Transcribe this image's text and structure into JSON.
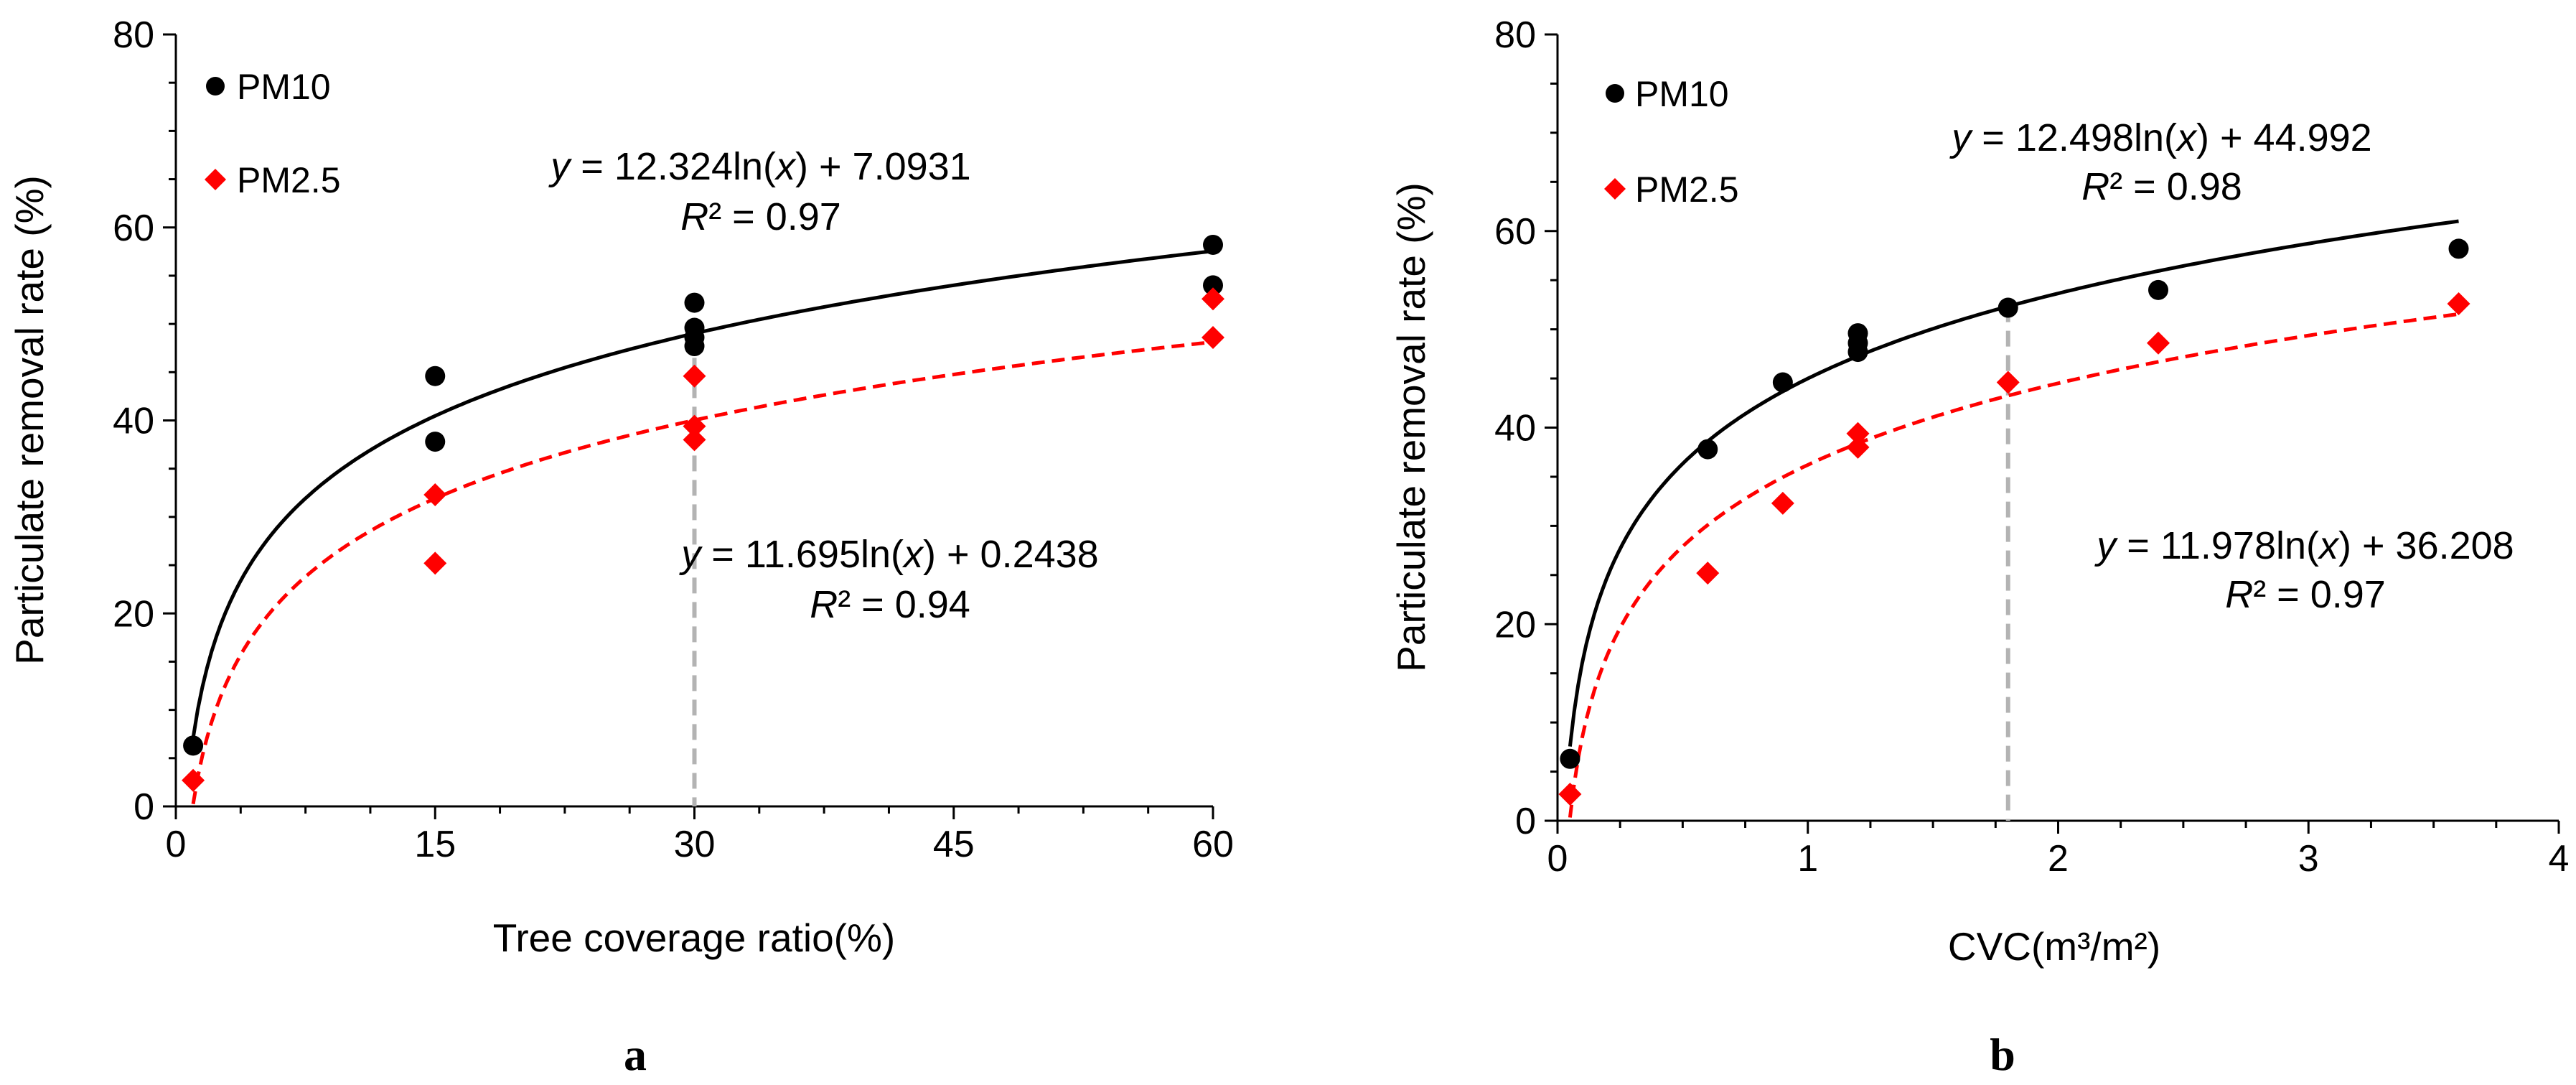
{
  "chart_data": [
    {
      "type": "scatter",
      "panel": "a",
      "xlabel": "Tree coverage ratio(%)",
      "ylabel": "Particulate removal rate (%)",
      "xlim": [
        0,
        60
      ],
      "ylim": [
        0,
        80
      ],
      "xticks": [
        "0",
        "15",
        "30",
        "45",
        "60"
      ],
      "yticks": [
        "0",
        "20",
        "40",
        "60",
        "80"
      ],
      "guide_x": 30,
      "series": [
        {
          "name": "PM10",
          "marker": "circle",
          "color": "#000000",
          "points": [
            [
              1,
              6.3
            ],
            [
              15,
              44.6
            ],
            [
              15,
              37.8
            ],
            [
              30,
              52.2
            ],
            [
              30,
              49.6
            ],
            [
              30,
              48.6
            ],
            [
              30,
              47.7
            ],
            [
              60,
              58.2
            ],
            [
              60,
              54.0
            ]
          ],
          "trend": {
            "a": 12.324,
            "b": 7.0931,
            "equation_prefix": "y",
            "equation_rest": " = 12.324ln(",
            "equation_var": "x",
            "equation_suffix": ") + 7.0931",
            "r2_symbol": "R",
            "r2_rest": "² = 0.97"
          }
        },
        {
          "name": "PM2.5",
          "marker": "diamond",
          "color": "#ff0000",
          "points": [
            [
              1,
              2.7
            ],
            [
              15,
              32.3
            ],
            [
              15,
              25.2
            ],
            [
              30,
              44.6
            ],
            [
              30,
              39.4
            ],
            [
              30,
              38.0
            ],
            [
              60,
              52.6
            ],
            [
              60,
              48.6
            ]
          ],
          "trend": {
            "a": 11.695,
            "b": 0.2438,
            "equation_prefix": "y",
            "equation_rest": " = 11.695ln(",
            "equation_var": "x",
            "equation_suffix": ") + 0.2438",
            "r2_symbol": "R",
            "r2_rest": "² = 0.94"
          }
        }
      ]
    },
    {
      "type": "scatter",
      "panel": "b",
      "xlabel": "CVC(m³/m²)",
      "ylabel": "Particulate removal rate (%)",
      "xlim": [
        0,
        4
      ],
      "ylim": [
        0,
        80
      ],
      "xticks": [
        "0",
        "1",
        "2",
        "3",
        "4"
      ],
      "yticks": [
        "0",
        "20",
        "40",
        "60",
        "80"
      ],
      "guide_x": 1.8,
      "series": [
        {
          "name": "PM10",
          "marker": "circle",
          "color": "#000000",
          "points": [
            [
              0.05,
              6.3
            ],
            [
              0.6,
              37.8
            ],
            [
              0.9,
              44.6
            ],
            [
              1.2,
              49.6
            ],
            [
              1.2,
              48.6
            ],
            [
              1.2,
              47.7
            ],
            [
              1.8,
              52.2
            ],
            [
              2.4,
              54.0
            ],
            [
              3.6,
              58.2
            ]
          ],
          "trend": {
            "a": 12.498,
            "b": 44.992,
            "equation_prefix": "y",
            "equation_rest": " = 12.498ln(",
            "equation_var": "x",
            "equation_suffix": ") + 44.992",
            "r2_symbol": "R",
            "r2_rest": "² = 0.98"
          }
        },
        {
          "name": "PM2.5",
          "marker": "diamond",
          "color": "#ff0000",
          "points": [
            [
              0.05,
              2.7
            ],
            [
              0.6,
              25.2
            ],
            [
              0.9,
              32.3
            ],
            [
              1.2,
              39.4
            ],
            [
              1.2,
              38.0
            ],
            [
              1.8,
              44.6
            ],
            [
              2.4,
              48.6
            ],
            [
              3.6,
              52.6
            ]
          ],
          "trend": {
            "a": 11.978,
            "b": 36.208,
            "equation_prefix": "y",
            "equation_rest": " = 11.978ln(",
            "equation_var": "x",
            "equation_suffix": ") + 36.208",
            "r2_symbol": "R",
            "r2_rest": "² = 0.97"
          }
        }
      ]
    }
  ]
}
